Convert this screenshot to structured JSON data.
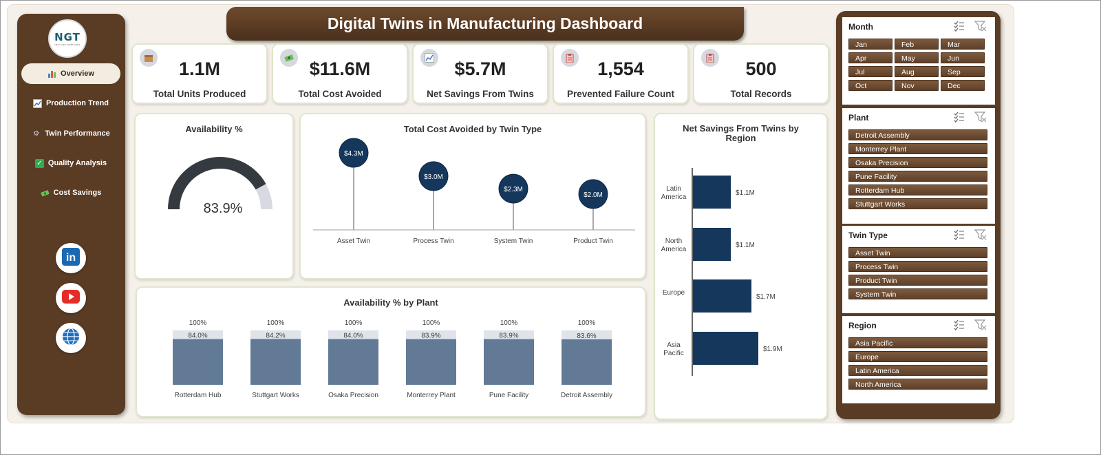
{
  "title": "Digital Twins in Manufacturing Dashboard",
  "logo": {
    "text": "NGT",
    "subtext": "NEXT GEN TEMPLATES"
  },
  "nav": [
    {
      "label": "Overview",
      "icon": "bar-chart-icon",
      "active": true
    },
    {
      "label": "Production Trend",
      "icon": "trend-chart-icon"
    },
    {
      "label": "Twin Performance",
      "icon": "gear-icon"
    },
    {
      "label": "Quality Analysis",
      "icon": "checkmark-icon"
    },
    {
      "label": "Cost Savings",
      "icon": "money-icon"
    }
  ],
  "social": [
    "linkedin-icon",
    "youtube-icon",
    "globe-icon"
  ],
  "kpis": [
    {
      "value": "1.1M",
      "label": "Total Units Produced",
      "icon": "box-icon"
    },
    {
      "value": "$11.6M",
      "label": "Total Cost Avoided",
      "icon": "money-icon"
    },
    {
      "value": "$5.7M",
      "label": "Net Savings From Twins",
      "icon": "trend-chart-icon"
    },
    {
      "value": "1,554",
      "label": "Prevented Failure Count",
      "icon": "clipboard-icon"
    },
    {
      "value": "500",
      "label": "Total Records",
      "icon": "clipboard-icon"
    }
  ],
  "availability": {
    "title": "Availability %",
    "value_label": "83.9%",
    "value": 83.9
  },
  "cost_avoided": {
    "title": "Total Cost Avoided by Twin Type"
  },
  "net_savings": {
    "title": "Net Savings From Twins by Region"
  },
  "avail_plant": {
    "title": "Availability % by Plant"
  },
  "chart_data": [
    {
      "type": "gauge",
      "title": "Availability %",
      "value": 83.9,
      "max": 100
    },
    {
      "type": "lollipop",
      "title": "Total Cost Avoided by Twin Type",
      "categories": [
        "Asset Twin",
        "Process Twin",
        "System Twin",
        "Product Twin"
      ],
      "values": [
        4.3,
        3.0,
        2.3,
        2.0
      ],
      "labels": [
        "$4.3M",
        "$3.0M",
        "$2.3M",
        "$2.0M"
      ]
    },
    {
      "type": "bar",
      "orientation": "horizontal",
      "title": "Net Savings From Twins by Region",
      "categories": [
        "Latin America",
        "North America",
        "Europe",
        "Asia Pacific"
      ],
      "values": [
        1.1,
        1.1,
        1.7,
        1.9
      ],
      "labels": [
        "$1.1M",
        "$1.1M",
        "$1.7M",
        "$1.9M"
      ]
    },
    {
      "type": "bar",
      "title": "Availability % by Plant",
      "categories": [
        "Rotterdam Hub",
        "Stuttgart Works",
        "Osaka Precision",
        "Monterrey Plant",
        "Pune Facility",
        "Detroit Assembly"
      ],
      "series": [
        {
          "values": [
            100,
            100,
            100,
            100,
            100,
            100
          ],
          "labels": [
            "100%",
            "100%",
            "100%",
            "100%",
            "100%",
            "100%"
          ]
        },
        {
          "values": [
            84.0,
            84.2,
            84.0,
            83.9,
            83.9,
            83.6
          ],
          "labels": [
            "84.0%",
            "84.2%",
            "84.0%",
            "83.9%",
            "83.9%",
            "83.6%"
          ]
        }
      ],
      "ylim": [
        0,
        100
      ]
    }
  ],
  "slicers": [
    {
      "title": "Month",
      "items": [
        "Jan",
        "Feb",
        "Mar",
        "Apr",
        "May",
        "Jun",
        "Jul",
        "Aug",
        "Sep",
        "Oct",
        "Nov",
        "Dec"
      ]
    },
    {
      "title": "Plant",
      "items": [
        "Detroit Assembly",
        "Monterrey Plant",
        "Osaka Precision",
        "Pune Facility",
        "Rotterdam Hub",
        "Stuttgart Works"
      ]
    },
    {
      "title": "Twin Type",
      "items": [
        "Asset Twin",
        "Process Twin",
        "Product Twin",
        "System Twin"
      ]
    },
    {
      "title": "Region",
      "items": [
        "Asia Pacific",
        "Europe",
        "Latin America",
        "North America"
      ]
    }
  ],
  "colors": {
    "brown": "#5a3c25",
    "navy": "#15375c",
    "slate": "#627a96",
    "track": "#dfe3ea"
  }
}
